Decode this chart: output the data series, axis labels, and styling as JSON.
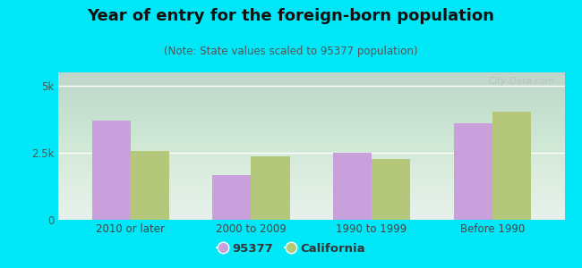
{
  "title": "Year of entry for the foreign-born population",
  "subtitle": "(Note: State values scaled to 95377 population)",
  "categories": [
    "2010 or later",
    "2000 to 2009",
    "1990 to 1999",
    "Before 1990"
  ],
  "values_95377": [
    3700,
    1680,
    2500,
    3600
  ],
  "values_california": [
    2580,
    2380,
    2280,
    4050
  ],
  "color_95377": "#c9a0dc",
  "color_california": "#b5c77a",
  "background_outer": "#00e8f8",
  "background_chart_top": "#e0f0ee",
  "background_chart_bottom": "#d4edda",
  "ylim": [
    0,
    5500
  ],
  "yticks": [
    0,
    2500,
    5000
  ],
  "ytick_labels": [
    "0",
    "2.5k",
    "5k"
  ],
  "legend_label_1": "95377",
  "legend_label_2": "California",
  "bar_width": 0.32,
  "title_fontsize": 13,
  "subtitle_fontsize": 8.5,
  "tick_fontsize": 8.5,
  "legend_fontsize": 9.5
}
